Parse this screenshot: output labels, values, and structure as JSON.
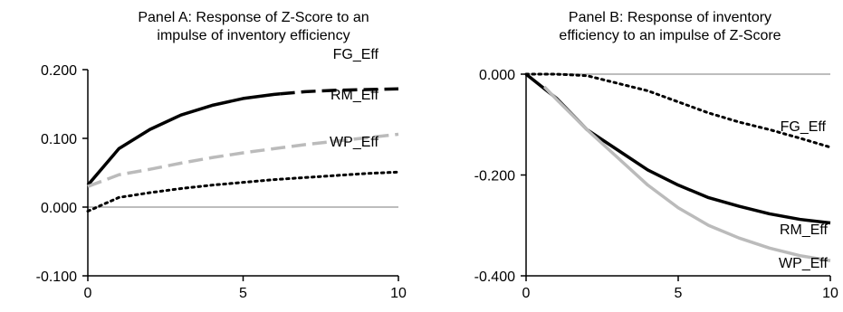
{
  "chart_data": [
    {
      "type": "line",
      "title": "Panel A: Response of Z-Score to an impulse of inventory efficiency",
      "title_lines": [
        "Panel A: Response of Z-Score to an",
        "impulse of inventory efficiency"
      ],
      "ylim": [
        -0.1,
        0.2
      ],
      "xlim": [
        0,
        10
      ],
      "yticks": [
        -0.1,
        0.0,
        0.1,
        0.2
      ],
      "ytick_labels": [
        "-0.100",
        "0.000",
        "0.100",
        "0.200"
      ],
      "xticks": [
        0,
        5,
        10
      ],
      "xtick_labels": [
        "0",
        "5",
        "10"
      ],
      "zero_line": true,
      "series": [
        {
          "name": "FG_Eff",
          "style": "solid-then-dashed",
          "color": "#000000",
          "x": [
            0,
            1,
            2,
            3,
            4,
            5,
            6,
            7,
            8,
            9,
            10
          ],
          "y": [
            0.032,
            0.085,
            0.113,
            0.134,
            0.148,
            0.158,
            0.164,
            0.168,
            0.17,
            0.171,
            0.172
          ]
        },
        {
          "name": "RM_Eff",
          "style": "dashed",
          "color": "#bbbbbb",
          "x": [
            0,
            1,
            2,
            3,
            4,
            5,
            6,
            7,
            8,
            9,
            10
          ],
          "y": [
            0.03,
            0.047,
            0.055,
            0.064,
            0.072,
            0.079,
            0.085,
            0.091,
            0.096,
            0.101,
            0.106
          ]
        },
        {
          "name": "WP_Eff",
          "style": "dotted",
          "color": "#000000",
          "x": [
            0,
            1,
            2,
            3,
            4,
            5,
            6,
            7,
            8,
            9,
            10
          ],
          "y": [
            -0.006,
            0.014,
            0.021,
            0.027,
            0.032,
            0.036,
            0.04,
            0.043,
            0.046,
            0.049,
            0.051
          ]
        }
      ]
    },
    {
      "type": "line",
      "title": "Panel B: Response of inventory efficiency to an impulse of Z-Score",
      "title_lines": [
        "Panel B: Response of inventory",
        "efficiency to an impulse of Z-Score"
      ],
      "ylim": [
        -0.4,
        0.0
      ],
      "xlim": [
        0,
        10
      ],
      "yticks": [
        -0.4,
        -0.2,
        0.0
      ],
      "ytick_labels": [
        "-0.400",
        "-0.200",
        "0.000"
      ],
      "xticks": [
        0,
        5,
        10
      ],
      "xtick_labels": [
        "0",
        "5",
        "10"
      ],
      "zero_line": true,
      "series": [
        {
          "name": "FG_Eff",
          "style": "dotted",
          "color": "#000000",
          "x": [
            0,
            1,
            2,
            3,
            4,
            5,
            6,
            7,
            8,
            9,
            10
          ],
          "y": [
            0.0,
            0.0,
            -0.003,
            -0.018,
            -0.033,
            -0.055,
            -0.077,
            -0.095,
            -0.11,
            -0.127,
            -0.145
          ]
        },
        {
          "name": "RM_Eff",
          "style": "solid",
          "color": "#000000",
          "x": [
            0,
            1,
            2,
            3,
            4,
            5,
            6,
            7,
            8,
            9,
            10
          ],
          "y": [
            0.0,
            -0.048,
            -0.11,
            -0.15,
            -0.19,
            -0.22,
            -0.245,
            -0.262,
            -0.277,
            -0.288,
            -0.295
          ]
        },
        {
          "name": "WP_Eff",
          "style": "solid",
          "color": "#bbbbbb",
          "x": [
            0.6,
            1,
            2,
            3,
            4,
            5,
            6,
            7,
            8,
            9,
            10
          ],
          "y": [
            -0.025,
            -0.05,
            -0.11,
            -0.165,
            -0.22,
            -0.265,
            -0.3,
            -0.325,
            -0.345,
            -0.36,
            -0.37
          ]
        }
      ]
    }
  ]
}
